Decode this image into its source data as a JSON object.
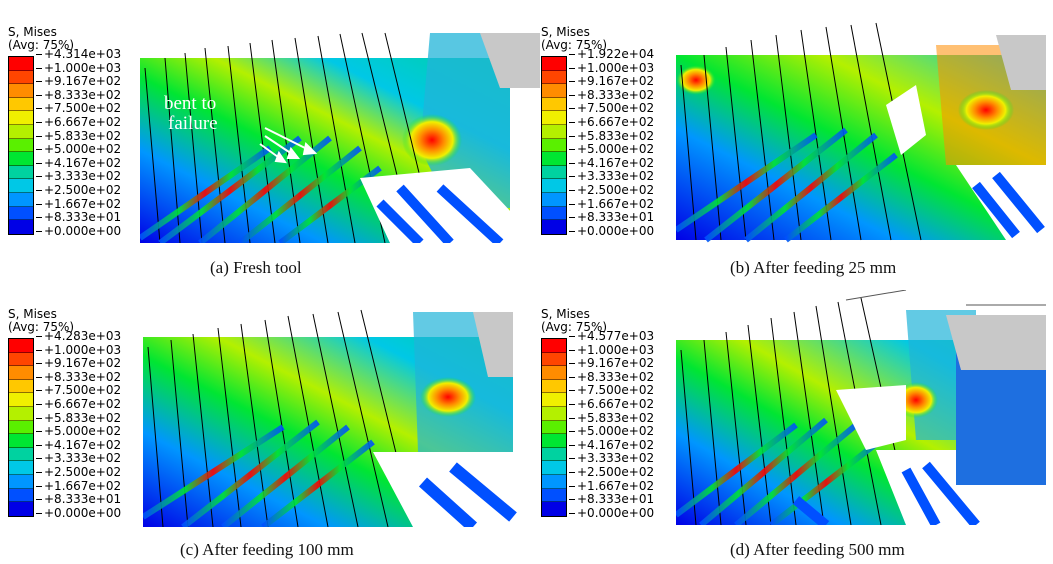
{
  "legend_common": {
    "variable": "S, Mises",
    "averaging": "(Avg: 75%)",
    "levels": [
      "+1.000e+03",
      "+9.167e+02",
      "+8.333e+02",
      "+7.500e+02",
      "+6.667e+02",
      "+5.833e+02",
      "+5.000e+02",
      "+4.167e+02",
      "+3.333e+02",
      "+2.500e+02",
      "+1.667e+02",
      "+8.333e+01",
      "+0.000e+00"
    ],
    "colors": [
      "#ff0000",
      "#ff4500",
      "#ff8c00",
      "#ffc800",
      "#f0f000",
      "#b4f000",
      "#5af000",
      "#00e632",
      "#00d2a0",
      "#00c8e6",
      "#0096ff",
      "#0050ff",
      "#0000e6"
    ]
  },
  "panels": [
    {
      "id": "a",
      "max": "+4.314e+03",
      "caption": "(a) Fresh tool",
      "annotation_line1": "bent to",
      "annotation_line2": "failure"
    },
    {
      "id": "b",
      "max": "+1.922e+04",
      "caption": "(b) After feeding 25 mm"
    },
    {
      "id": "c",
      "max": "+4.283e+03",
      "caption": "(c) After feeding 100 mm"
    },
    {
      "id": "d",
      "max": "+4.577e+03",
      "caption": "(d) After feeding 500 mm"
    }
  ]
}
